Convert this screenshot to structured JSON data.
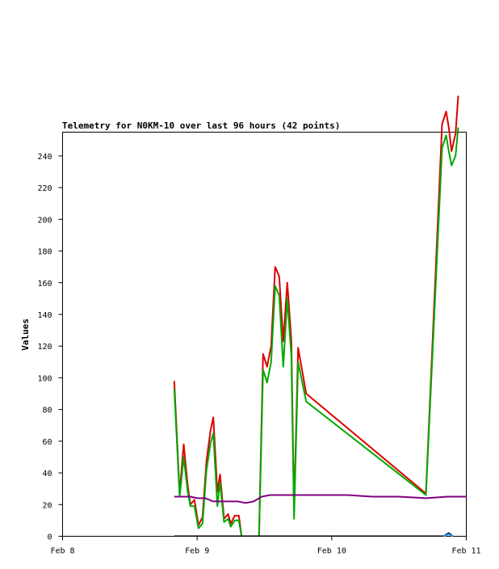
{
  "chart_data": {
    "type": "line",
    "title": "Telemetry for N0KM-10 over last 96 hours (42 points)",
    "xlabel": "",
    "ylabel": "Values",
    "x_ticks": [
      "Feb 8",
      "Feb 9",
      "Feb 10",
      "Feb 11"
    ],
    "x_range": [
      0,
      3
    ],
    "ylim": [
      0,
      255
    ],
    "y_ticks": [
      0,
      20,
      40,
      60,
      80,
      100,
      120,
      140,
      160,
      180,
      200,
      220,
      240
    ],
    "grid": false,
    "series": [
      {
        "color": "#dd0000",
        "points": [
          [
            0.83,
            98
          ],
          [
            0.87,
            27
          ],
          [
            0.9,
            58
          ],
          [
            0.93,
            32
          ],
          [
            0.95,
            20
          ],
          [
            0.98,
            23
          ],
          [
            1.01,
            7
          ],
          [
            1.04,
            12
          ],
          [
            1.07,
            48
          ],
          [
            1.1,
            67
          ],
          [
            1.12,
            75
          ],
          [
            1.15,
            28
          ],
          [
            1.17,
            39
          ],
          [
            1.2,
            11
          ],
          [
            1.23,
            14
          ],
          [
            1.25,
            8
          ],
          [
            1.28,
            13
          ],
          [
            1.31,
            13
          ],
          [
            1.33,
            0
          ],
          [
            1.46,
            0
          ],
          [
            1.49,
            115
          ],
          [
            1.52,
            107
          ],
          [
            1.55,
            120
          ],
          [
            1.58,
            170
          ],
          [
            1.61,
            164
          ],
          [
            1.64,
            123
          ],
          [
            1.67,
            160
          ],
          [
            1.7,
            124
          ],
          [
            1.72,
            16
          ],
          [
            1.75,
            119
          ],
          [
            1.81,
            90
          ],
          [
            2.7,
            27
          ],
          [
            2.82,
            260
          ],
          [
            2.85,
            268
          ],
          [
            2.87,
            258
          ],
          [
            2.89,
            243
          ],
          [
            2.92,
            254
          ],
          [
            2.94,
            278
          ]
        ]
      },
      {
        "color": "#00aa00",
        "points": [
          [
            0.83,
            93
          ],
          [
            0.87,
            25
          ],
          [
            0.9,
            50
          ],
          [
            0.93,
            28
          ],
          [
            0.95,
            19
          ],
          [
            0.98,
            19
          ],
          [
            1.01,
            5
          ],
          [
            1.04,
            8
          ],
          [
            1.07,
            42
          ],
          [
            1.1,
            59
          ],
          [
            1.12,
            65
          ],
          [
            1.15,
            19
          ],
          [
            1.17,
            34
          ],
          [
            1.2,
            9
          ],
          [
            1.23,
            11
          ],
          [
            1.25,
            6
          ],
          [
            1.28,
            10
          ],
          [
            1.31,
            10
          ],
          [
            1.33,
            0
          ],
          [
            1.46,
            0
          ],
          [
            1.49,
            105
          ],
          [
            1.52,
            97
          ],
          [
            1.55,
            110
          ],
          [
            1.58,
            158
          ],
          [
            1.61,
            152
          ],
          [
            1.64,
            107
          ],
          [
            1.67,
            150
          ],
          [
            1.7,
            114
          ],
          [
            1.72,
            11
          ],
          [
            1.75,
            110
          ],
          [
            1.81,
            85
          ],
          [
            2.7,
            26
          ],
          [
            2.82,
            245
          ],
          [
            2.85,
            253
          ],
          [
            2.87,
            243
          ],
          [
            2.89,
            234
          ],
          [
            2.92,
            240
          ],
          [
            2.94,
            258
          ]
        ]
      },
      {
        "color": "#800080",
        "points": [
          [
            0.83,
            25
          ],
          [
            0.95,
            25
          ],
          [
            1.0,
            24
          ],
          [
            1.06,
            24
          ],
          [
            1.12,
            22
          ],
          [
            1.3,
            22
          ],
          [
            1.36,
            21
          ],
          [
            1.42,
            22
          ],
          [
            1.48,
            25
          ],
          [
            1.54,
            26
          ],
          [
            2.12,
            26
          ],
          [
            2.3,
            25
          ],
          [
            2.5,
            25
          ],
          [
            2.7,
            24
          ],
          [
            2.86,
            25
          ],
          [
            3.0,
            25
          ]
        ]
      },
      {
        "color": "#000000",
        "points": [
          [
            0.83,
            0
          ],
          [
            2.83,
            0
          ],
          [
            2.87,
            2
          ],
          [
            2.9,
            0
          ]
        ]
      },
      {
        "color": "#3399ff",
        "points": [
          [
            2.83,
            0
          ],
          [
            2.87,
            1.2
          ],
          [
            2.9,
            0
          ]
        ]
      }
    ]
  }
}
